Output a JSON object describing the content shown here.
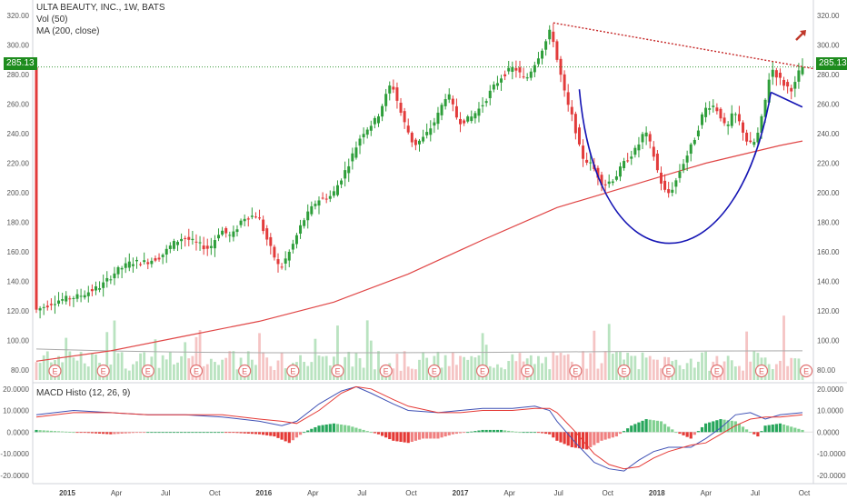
{
  "legend": {
    "symbol_line": "ULTA BEAUTY, INC., 1W, BATS",
    "vol_line": "Vol (50)",
    "ma_line": "MA (200, close)",
    "macd_line": "MACD Histo (12, 26, 9)"
  },
  "colors": {
    "up": "#2e9e3a",
    "down": "#e23b3b",
    "ma": "#e04646",
    "cup": "#1515b4",
    "trend": "#c62828",
    "macd": "#3f51b5",
    "signal": "#e53935",
    "price_tag": "#1e8c1e",
    "arrow": "#c0392b"
  },
  "price_label": "285.13",
  "earnings_label": "E",
  "chart_data": [
    {
      "type": "candlestick",
      "title": "ULTA BEAUTY, INC., 1W, BATS",
      "x_ticks": [
        "2015",
        "Apr",
        "Jul",
        "Oct",
        "2016",
        "Apr",
        "Jul",
        "Oct",
        "2017",
        "Apr",
        "Jul",
        "Oct",
        "2018",
        "Apr",
        "Jul",
        "Oct"
      ],
      "y_ticks": [
        80,
        100,
        120,
        140,
        160,
        180,
        200,
        220,
        240,
        260,
        280,
        300,
        320
      ],
      "ylim": [
        72,
        328
      ],
      "last_price": 285.13,
      "price_path": [
        [
          0,
          120
        ],
        [
          6,
          127
        ],
        [
          12,
          130
        ],
        [
          18,
          137
        ],
        [
          22,
          147
        ],
        [
          26,
          153
        ],
        [
          30,
          153
        ],
        [
          34,
          157
        ],
        [
          37,
          165
        ],
        [
          40,
          170
        ],
        [
          44,
          165
        ],
        [
          47,
          162
        ],
        [
          50,
          175
        ],
        [
          53,
          170
        ],
        [
          56,
          183
        ],
        [
          60,
          185
        ],
        [
          63,
          165
        ],
        [
          66,
          148
        ],
        [
          69,
          162
        ],
        [
          72,
          180
        ],
        [
          76,
          195
        ],
        [
          80,
          198
        ],
        [
          84,
          217
        ],
        [
          88,
          240
        ],
        [
          92,
          250
        ],
        [
          96,
          275
        ],
        [
          99,
          250
        ],
        [
          102,
          232
        ],
        [
          105,
          238
        ],
        [
          108,
          250
        ],
        [
          111,
          268
        ],
        [
          114,
          248
        ],
        [
          117,
          250
        ],
        [
          120,
          258
        ],
        [
          123,
          270
        ],
        [
          126,
          280
        ],
        [
          129,
          285
        ],
        [
          132,
          276
        ],
        [
          135,
          290
        ],
        [
          138,
          305
        ],
        [
          139,
          312
        ],
        [
          140,
          295
        ],
        [
          141,
          285
        ],
        [
          143,
          262
        ],
        [
          145,
          248
        ],
        [
          147,
          225
        ],
        [
          150,
          218
        ],
        [
          153,
          205
        ],
        [
          156,
          210
        ],
        [
          159,
          222
        ],
        [
          162,
          230
        ],
        [
          164,
          242
        ],
        [
          166,
          230
        ],
        [
          168,
          210
        ],
        [
          170,
          198
        ],
        [
          172,
          205
        ],
        [
          174,
          218
        ],
        [
          176,
          228
        ],
        [
          178,
          240
        ],
        [
          180,
          256
        ],
        [
          182,
          260
        ],
        [
          184,
          255
        ],
        [
          186,
          242
        ],
        [
          188,
          255
        ],
        [
          190,
          245
        ],
        [
          192,
          232
        ],
        [
          194,
          235
        ],
        [
          196,
          255
        ],
        [
          198,
          285
        ],
        [
          200,
          278
        ],
        [
          202,
          272
        ],
        [
          204,
          270
        ],
        [
          206,
          285
        ]
      ],
      "ma200_path": [
        [
          0,
          86
        ],
        [
          20,
          93
        ],
        [
          40,
          103
        ],
        [
          60,
          113
        ],
        [
          80,
          126
        ],
        [
          100,
          145
        ],
        [
          120,
          168
        ],
        [
          140,
          190
        ],
        [
          160,
          205
        ],
        [
          180,
          220
        ],
        [
          200,
          232
        ],
        [
          206,
          235
        ]
      ],
      "resistance_line": [
        [
          139,
          315
        ],
        [
          206,
          284
        ]
      ],
      "cup_bottom_price": 156,
      "volume_avg_level": 0.54,
      "earnings_weeks": [
        5,
        18,
        30,
        43,
        56,
        69,
        81,
        94,
        107,
        120,
        132,
        145,
        158,
        170,
        183,
        195,
        207
      ]
    },
    {
      "type": "bar",
      "title": "MACD Histo (12, 26, 9)",
      "y_ticks": [
        -20,
        -10,
        0,
        10,
        20
      ],
      "ylim": [
        -23,
        22
      ],
      "histogram_path": [
        [
          0,
          1
        ],
        [
          10,
          0
        ],
        [
          20,
          -1
        ],
        [
          30,
          0
        ],
        [
          40,
          0
        ],
        [
          50,
          0
        ],
        [
          60,
          -1
        ],
        [
          64,
          -2
        ],
        [
          68,
          -5
        ],
        [
          72,
          0
        ],
        [
          76,
          3
        ],
        [
          80,
          4
        ],
        [
          84,
          3
        ],
        [
          88,
          1
        ],
        [
          92,
          -1
        ],
        [
          96,
          -4
        ],
        [
          100,
          -5
        ],
        [
          104,
          -3
        ],
        [
          108,
          -3
        ],
        [
          112,
          -1
        ],
        [
          116,
          0
        ],
        [
          120,
          1
        ],
        [
          125,
          1
        ],
        [
          130,
          0
        ],
        [
          134,
          0
        ],
        [
          138,
          -1
        ],
        [
          140,
          -4
        ],
        [
          144,
          -7
        ],
        [
          148,
          -8
        ],
        [
          152,
          -4
        ],
        [
          156,
          -2
        ],
        [
          160,
          3
        ],
        [
          164,
          6
        ],
        [
          168,
          5
        ],
        [
          172,
          0
        ],
        [
          176,
          -3
        ],
        [
          180,
          4
        ],
        [
          184,
          6
        ],
        [
          188,
          5
        ],
        [
          192,
          0
        ],
        [
          194,
          -2
        ],
        [
          196,
          3
        ],
        [
          200,
          4
        ],
        [
          206,
          1
        ]
      ],
      "macd_path": [
        [
          0,
          8
        ],
        [
          10,
          10
        ],
        [
          20,
          9
        ],
        [
          30,
          8
        ],
        [
          40,
          8
        ],
        [
          50,
          7
        ],
        [
          60,
          5
        ],
        [
          66,
          3
        ],
        [
          70,
          5
        ],
        [
          76,
          13
        ],
        [
          82,
          19
        ],
        [
          86,
          21
        ],
        [
          90,
          18
        ],
        [
          96,
          13
        ],
        [
          100,
          10
        ],
        [
          108,
          9
        ],
        [
          114,
          10
        ],
        [
          120,
          11
        ],
        [
          128,
          11
        ],
        [
          134,
          12
        ],
        [
          138,
          10
        ],
        [
          140,
          5
        ],
        [
          145,
          -5
        ],
        [
          150,
          -14
        ],
        [
          154,
          -17
        ],
        [
          158,
          -18
        ],
        [
          162,
          -13
        ],
        [
          166,
          -9
        ],
        [
          170,
          -7
        ],
        [
          176,
          -7
        ],
        [
          180,
          -3
        ],
        [
          184,
          2
        ],
        [
          188,
          8
        ],
        [
          192,
          9
        ],
        [
          196,
          6
        ],
        [
          200,
          8
        ],
        [
          206,
          9
        ]
      ],
      "signal_path": [
        [
          0,
          7
        ],
        [
          10,
          9
        ],
        [
          20,
          9
        ],
        [
          30,
          8
        ],
        [
          40,
          8
        ],
        [
          50,
          8
        ],
        [
          60,
          6
        ],
        [
          66,
          5
        ],
        [
          70,
          4
        ],
        [
          76,
          10
        ],
        [
          82,
          18
        ],
        [
          86,
          21
        ],
        [
          90,
          20
        ],
        [
          96,
          15
        ],
        [
          100,
          12
        ],
        [
          108,
          9
        ],
        [
          114,
          9
        ],
        [
          120,
          10
        ],
        [
          128,
          10
        ],
        [
          134,
          11
        ],
        [
          138,
          11
        ],
        [
          140,
          9
        ],
        [
          145,
          0
        ],
        [
          150,
          -10
        ],
        [
          154,
          -15
        ],
        [
          158,
          -17
        ],
        [
          162,
          -16
        ],
        [
          166,
          -12
        ],
        [
          170,
          -9
        ],
        [
          176,
          -6
        ],
        [
          180,
          -5
        ],
        [
          184,
          -1
        ],
        [
          188,
          3
        ],
        [
          192,
          6
        ],
        [
          196,
          7
        ],
        [
          200,
          7
        ],
        [
          206,
          8
        ]
      ]
    }
  ]
}
